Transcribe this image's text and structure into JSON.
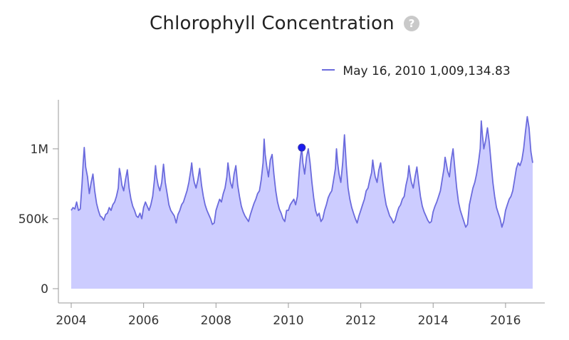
{
  "header": {
    "title": "Chlorophyll Concentration",
    "help_icon_glyph": "?"
  },
  "legend": {
    "date": "May 16, 2010",
    "value": "1,009,134.83"
  },
  "colors": {
    "line": "#6b6bdd",
    "fill": "#ccccff",
    "marker": "#1a1aee"
  },
  "chart_data": {
    "type": "area",
    "title": "Chlorophyll Concentration",
    "xlabel": "",
    "ylabel": "",
    "xlim": [
      2004.0,
      2016.75
    ],
    "ylim": [
      0,
      1300000
    ],
    "yticks": [
      {
        "value": 0,
        "label": "0"
      },
      {
        "value": 500000,
        "label": "500k"
      },
      {
        "value": 1000000,
        "label": "1M"
      }
    ],
    "xticks": [
      {
        "value": 2004,
        "label": "2004"
      },
      {
        "value": 2006,
        "label": "2006"
      },
      {
        "value": 2008,
        "label": "2008"
      },
      {
        "value": 2010,
        "label": "2010"
      },
      {
        "value": 2012,
        "label": "2012"
      },
      {
        "value": 2014,
        "label": "2014"
      },
      {
        "value": 2016,
        "label": "2016"
      }
    ],
    "highlight": {
      "x": 2010.37,
      "y": 1009134.83
    },
    "x": [
      2004.0,
      2004.05,
      2004.1,
      2004.15,
      2004.2,
      2004.25,
      2004.3,
      2004.33,
      2004.36,
      2004.4,
      2004.45,
      2004.5,
      2004.55,
      2004.6,
      2004.65,
      2004.7,
      2004.75,
      2004.8,
      2004.85,
      2004.9,
      2004.95,
      2005.0,
      2005.05,
      2005.1,
      2005.15,
      2005.2,
      2005.25,
      2005.3,
      2005.33,
      2005.36,
      2005.4,
      2005.45,
      2005.5,
      2005.55,
      2005.6,
      2005.65,
      2005.7,
      2005.75,
      2005.8,
      2005.85,
      2005.9,
      2005.95,
      2006.0,
      2006.05,
      2006.1,
      2006.15,
      2006.2,
      2006.25,
      2006.3,
      2006.33,
      2006.36,
      2006.4,
      2006.45,
      2006.5,
      2006.55,
      2006.6,
      2006.65,
      2006.7,
      2006.75,
      2006.8,
      2006.85,
      2006.9,
      2006.95,
      2007.0,
      2007.05,
      2007.1,
      2007.15,
      2007.2,
      2007.25,
      2007.3,
      2007.33,
      2007.36,
      2007.4,
      2007.45,
      2007.5,
      2007.55,
      2007.6,
      2007.65,
      2007.7,
      2007.75,
      2007.8,
      2007.85,
      2007.9,
      2007.95,
      2008.0,
      2008.05,
      2008.1,
      2008.15,
      2008.2,
      2008.25,
      2008.3,
      2008.33,
      2008.36,
      2008.4,
      2008.45,
      2008.5,
      2008.55,
      2008.6,
      2008.65,
      2008.7,
      2008.75,
      2008.8,
      2008.85,
      2008.9,
      2008.95,
      2009.0,
      2009.05,
      2009.1,
      2009.15,
      2009.2,
      2009.25,
      2009.3,
      2009.33,
      2009.36,
      2009.4,
      2009.45,
      2009.5,
      2009.55,
      2009.6,
      2009.65,
      2009.7,
      2009.75,
      2009.8,
      2009.85,
      2009.9,
      2009.95,
      2010.0,
      2010.05,
      2010.1,
      2010.15,
      2010.2,
      2010.25,
      2010.3,
      2010.33,
      2010.37,
      2010.4,
      2010.45,
      2010.5,
      2010.55,
      2010.6,
      2010.65,
      2010.7,
      2010.75,
      2010.8,
      2010.85,
      2010.9,
      2010.95,
      2011.0,
      2011.05,
      2011.1,
      2011.15,
      2011.2,
      2011.25,
      2011.3,
      2011.33,
      2011.36,
      2011.4,
      2011.45,
      2011.5,
      2011.55,
      2011.6,
      2011.65,
      2011.7,
      2011.75,
      2011.8,
      2011.85,
      2011.9,
      2011.95,
      2012.0,
      2012.05,
      2012.1,
      2012.15,
      2012.2,
      2012.25,
      2012.3,
      2012.33,
      2012.36,
      2012.4,
      2012.45,
      2012.5,
      2012.55,
      2012.6,
      2012.65,
      2012.7,
      2012.75,
      2012.8,
      2012.85,
      2012.9,
      2012.95,
      2013.0,
      2013.05,
      2013.1,
      2013.15,
      2013.2,
      2013.25,
      2013.3,
      2013.33,
      2013.36,
      2013.4,
      2013.45,
      2013.5,
      2013.55,
      2013.6,
      2013.65,
      2013.7,
      2013.75,
      2013.8,
      2013.85,
      2013.9,
      2013.95,
      2014.0,
      2014.05,
      2014.1,
      2014.15,
      2014.2,
      2014.25,
      2014.3,
      2014.33,
      2014.36,
      2014.4,
      2014.45,
      2014.5,
      2014.55,
      2014.6,
      2014.65,
      2014.7,
      2014.75,
      2014.8,
      2014.85,
      2014.9,
      2014.95,
      2015.0,
      2015.05,
      2015.1,
      2015.15,
      2015.2,
      2015.25,
      2015.3,
      2015.33,
      2015.36,
      2015.4,
      2015.45,
      2015.5,
      2015.55,
      2015.6,
      2015.65,
      2015.7,
      2015.75,
      2015.8,
      2015.85,
      2015.9,
      2015.95,
      2016.0,
      2016.05,
      2016.1,
      2016.15,
      2016.2,
      2016.25,
      2016.3,
      2016.35,
      2016.4,
      2016.45,
      2016.5,
      2016.55,
      2016.6,
      2016.65,
      2016.7,
      2016.75
    ],
    "y": [
      560000,
      580000,
      570000,
      620000,
      560000,
      570000,
      750000,
      900000,
      1010000,
      870000,
      800000,
      680000,
      760000,
      820000,
      700000,
      610000,
      560000,
      520000,
      510000,
      490000,
      530000,
      540000,
      580000,
      560000,
      600000,
      620000,
      660000,
      720000,
      860000,
      820000,
      740000,
      700000,
      780000,
      850000,
      720000,
      640000,
      590000,
      560000,
      520000,
      510000,
      540000,
      500000,
      580000,
      620000,
      590000,
      560000,
      600000,
      660000,
      780000,
      880000,
      800000,
      740000,
      700000,
      760000,
      890000,
      760000,
      680000,
      600000,
      560000,
      540000,
      520000,
      470000,
      530000,
      560000,
      600000,
      620000,
      660000,
      700000,
      760000,
      840000,
      900000,
      820000,
      760000,
      720000,
      780000,
      860000,
      740000,
      660000,
      600000,
      560000,
      530000,
      500000,
      460000,
      470000,
      560000,
      600000,
      640000,
      620000,
      680000,
      720000,
      800000,
      900000,
      840000,
      760000,
      720000,
      820000,
      880000,
      740000,
      660000,
      590000,
      550000,
      520000,
      500000,
      480000,
      530000,
      570000,
      610000,
      640000,
      680000,
      700000,
      780000,
      900000,
      1070000,
      960000,
      880000,
      800000,
      920000,
      960000,
      820000,
      700000,
      620000,
      570000,
      540000,
      500000,
      480000,
      560000,
      560000,
      600000,
      620000,
      640000,
      600000,
      660000,
      840000,
      930000,
      1009134.83,
      900000,
      820000,
      940000,
      1000000,
      900000,
      760000,
      650000,
      560000,
      520000,
      540000,
      480000,
      500000,
      560000,
      600000,
      650000,
      680000,
      700000,
      780000,
      860000,
      1000000,
      900000,
      820000,
      760000,
      900000,
      1100000,
      880000,
      720000,
      640000,
      580000,
      540000,
      500000,
      470000,
      520000,
      560000,
      600000,
      640000,
      700000,
      720000,
      780000,
      830000,
      920000,
      860000,
      800000,
      760000,
      850000,
      900000,
      780000,
      680000,
      600000,
      560000,
      520000,
      500000,
      470000,
      490000,
      540000,
      580000,
      600000,
      640000,
      660000,
      740000,
      800000,
      880000,
      820000,
      760000,
      720000,
      800000,
      870000,
      760000,
      660000,
      590000,
      550000,
      520000,
      490000,
      470000,
      480000,
      550000,
      590000,
      620000,
      660000,
      700000,
      780000,
      860000,
      940000,
      900000,
      840000,
      800000,
      920000,
      1000000,
      860000,
      720000,
      620000,
      560000,
      520000,
      480000,
      440000,
      460000,
      600000,
      660000,
      720000,
      760000,
      820000,
      900000,
      1000000,
      1200000,
      1100000,
      1000000,
      1060000,
      1150000,
      1050000,
      900000,
      760000,
      660000,
      580000,
      540000,
      500000,
      440000,
      480000,
      560000,
      600000,
      640000,
      660000,
      700000,
      780000,
      860000,
      900000,
      880000,
      920000,
      1000000,
      1120000,
      1230000,
      1150000,
      980000,
      900000
    ]
  }
}
